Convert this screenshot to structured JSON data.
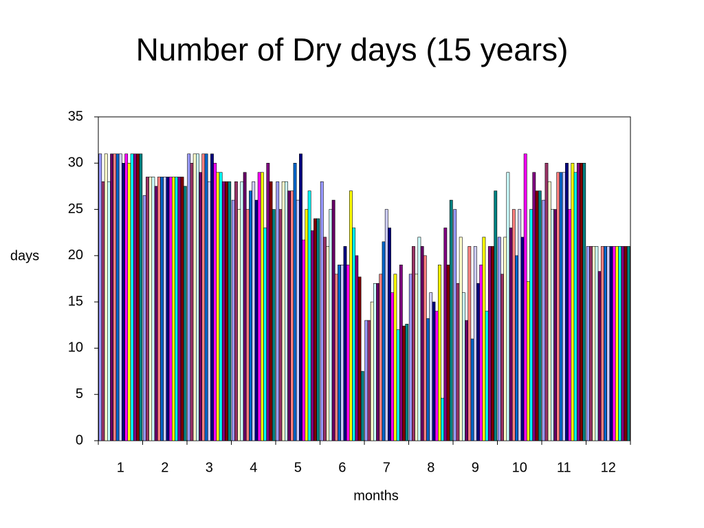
{
  "chart_data": {
    "type": "bar",
    "title": "Number of Dry days (15 years)",
    "x_label": "months",
    "y_label": "days",
    "categories": [
      "1",
      "2",
      "3",
      "4",
      "5",
      "6",
      "7",
      "8",
      "9",
      "10",
      "11",
      "12"
    ],
    "ylim": [
      0,
      35
    ],
    "yticks": [
      0,
      5,
      10,
      15,
      20,
      25,
      30,
      35
    ],
    "series": [
      {
        "color": "#9999FF",
        "values": [
          31,
          26.5,
          31,
          26,
          28,
          28,
          13,
          18,
          25,
          22,
          26,
          21
        ]
      },
      {
        "color": "#993366",
        "values": [
          28,
          28.5,
          30,
          28,
          25,
          22,
          13,
          21,
          17,
          18,
          30,
          21
        ]
      },
      {
        "color": "#FFFFCC",
        "values": [
          31,
          28.5,
          31,
          25,
          28,
          21,
          15,
          18,
          22,
          22,
          28,
          21
        ]
      },
      {
        "color": "#CCFFFF",
        "values": [
          28,
          28.5,
          31,
          28,
          28,
          25,
          17,
          22,
          16,
          29,
          25,
          21
        ]
      },
      {
        "color": "#660066",
        "values": [
          31,
          27.5,
          29,
          29,
          27,
          26,
          17,
          21,
          13,
          23,
          25,
          18.3
        ]
      },
      {
        "color": "#FF8080",
        "values": [
          31,
          28.5,
          31,
          25,
          27,
          18,
          18,
          20,
          21,
          25,
          29,
          21
        ]
      },
      {
        "color": "#0066CC",
        "values": [
          31,
          28.5,
          31,
          27,
          30,
          19,
          21.5,
          13.2,
          11,
          20,
          29,
          21
        ]
      },
      {
        "color": "#CCCCFF",
        "values": [
          31,
          28.5,
          28,
          28,
          26,
          19,
          25,
          16,
          21,
          25,
          29,
          21
        ]
      },
      {
        "color": "#000080",
        "values": [
          30,
          28.5,
          31,
          26,
          31,
          21,
          23,
          15,
          17,
          22,
          30,
          21
        ]
      },
      {
        "color": "#FF00FF",
        "values": [
          31,
          28.5,
          30,
          29,
          21.7,
          19,
          16,
          14,
          19,
          31,
          25,
          21
        ]
      },
      {
        "color": "#FFFF00",
        "values": [
          30,
          28.5,
          29,
          29,
          25,
          27,
          18,
          19,
          22,
          17.2,
          30,
          21
        ]
      },
      {
        "color": "#00FFFF",
        "values": [
          31,
          28.5,
          29,
          23,
          27,
          23,
          12,
          4.6,
          14,
          25,
          29,
          21
        ]
      },
      {
        "color": "#800080",
        "values": [
          31,
          28.5,
          28,
          30,
          22.7,
          20,
          19,
          23,
          21,
          29,
          30,
          21
        ]
      },
      {
        "color": "#800000",
        "values": [
          31,
          28.5,
          28,
          28,
          24,
          17.7,
          12.4,
          19,
          21,
          27,
          30,
          21
        ]
      },
      {
        "color": "#008080",
        "values": [
          31,
          27.5,
          28,
          25,
          24,
          7.5,
          12.6,
          26,
          27,
          27,
          30,
          21
        ]
      }
    ]
  }
}
